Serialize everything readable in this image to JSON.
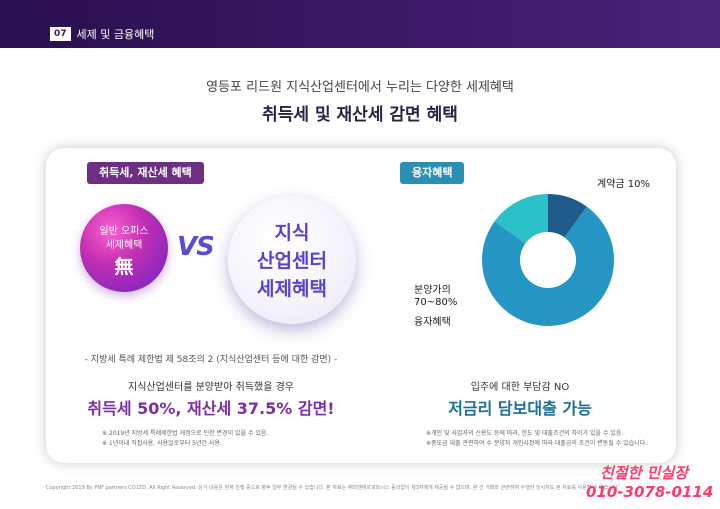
{
  "header": {
    "chapter_number": "07",
    "chapter_title": "세제 및 금융혜택"
  },
  "subtitle": "영등포 리드원 지식산업센터에서 누리는 다양한 세제혜택",
  "title": "취득세 및 재산세 감면 혜택",
  "left": {
    "tag": "취득세, 재산세 혜택",
    "small_circle": {
      "line1": "일반 오피스",
      "line2": "세제혜택",
      "mark": "無"
    },
    "vs": "VS",
    "big_circle": {
      "line1": "지식",
      "line2": "산업센터",
      "line3": "세제혜택"
    },
    "law_note": "- 지방세 특례 제한법 제 58조의 2 (지식산업센터 등에 대한 감면) -",
    "desc": "지식산업센터를 분양받아 취득했을 경우",
    "highlight": "취득세 50%, 재산세 37.5% 감면!",
    "footnotes": [
      "※ 2019년 지방세 특례제한법 개정으로 인한 변경이 있을 수 있음.",
      "※ 1년이내 직접사용, 사용일로부터 5년간 사용."
    ]
  },
  "right": {
    "tag": "융자혜택",
    "pie_label_deposit": "계약금 10%",
    "pie_label_loan": [
      "분양가의",
      "70~80%",
      "융자혜택"
    ],
    "desc": "입주에 대한 부담감 NO",
    "highlight": "저금리 담보대출 가능",
    "footnotes": [
      "※개인 및 사업자의 신용도 등에 따라, 한도 및 대출조건의 차이가 있을 수 있음.",
      "※중도금 대출 관련하여 수 분양자 개인사정에 따라 대출금의 조건이 변동될 수 있습니다."
    ]
  },
  "chart_data": {
    "type": "pie",
    "categories": [
      "계약금 10%",
      "분양가의 70~80% 융자혜택",
      ""
    ],
    "values": [
      10,
      75,
      15
    ],
    "colors": [
      "#1f5c8c",
      "#2596c4",
      "#2cc1c9"
    ]
  },
  "copyright": "Copyright 2019 By PNF partners CO.LTD. All Right Reserved. 상기 내용은 현재 진행 중으로 향후 일부 변경될 수 있습니다. 본 자료는 ㈜피앤에프파트너스 동의없이 제3자에게 제공될 수 없으며, 본 건 거래와 관련하여 수행한 당사자도 본 자료를 사용할 수 없습니다.",
  "signature": {
    "line1": "친절한 민실장",
    "line2": "010-3078-0114"
  },
  "colors": {
    "header": "#3c1a68",
    "left_accent": "#7b2fa8",
    "right_accent": "#1a6f95",
    "signature": "#ff3b6b"
  }
}
